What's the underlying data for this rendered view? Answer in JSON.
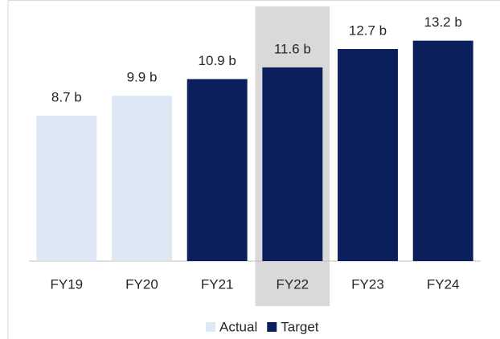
{
  "chart_data": {
    "type": "bar",
    "categories": [
      "FY19",
      "FY20",
      "FY21",
      "FY22",
      "FY23",
      "FY24"
    ],
    "series": [
      {
        "name": "Actual",
        "color": "#dde8f4",
        "values": [
          8.7,
          9.9,
          null,
          null,
          null,
          null
        ],
        "value_labels": [
          "8.7 b",
          "9.9 b",
          null,
          null,
          null,
          null
        ]
      },
      {
        "name": "Target",
        "color": "#0b1f5c",
        "values": [
          null,
          null,
          10.9,
          11.6,
          12.7,
          13.2
        ],
        "value_labels": [
          null,
          null,
          "10.9 b",
          "11.6 b",
          "12.7 b",
          "13.2 b"
        ]
      }
    ],
    "ylim": [
      0,
      14
    ],
    "highlight": "FY22",
    "highlight_color": "#d9d9d9",
    "legend": "bottom"
  }
}
